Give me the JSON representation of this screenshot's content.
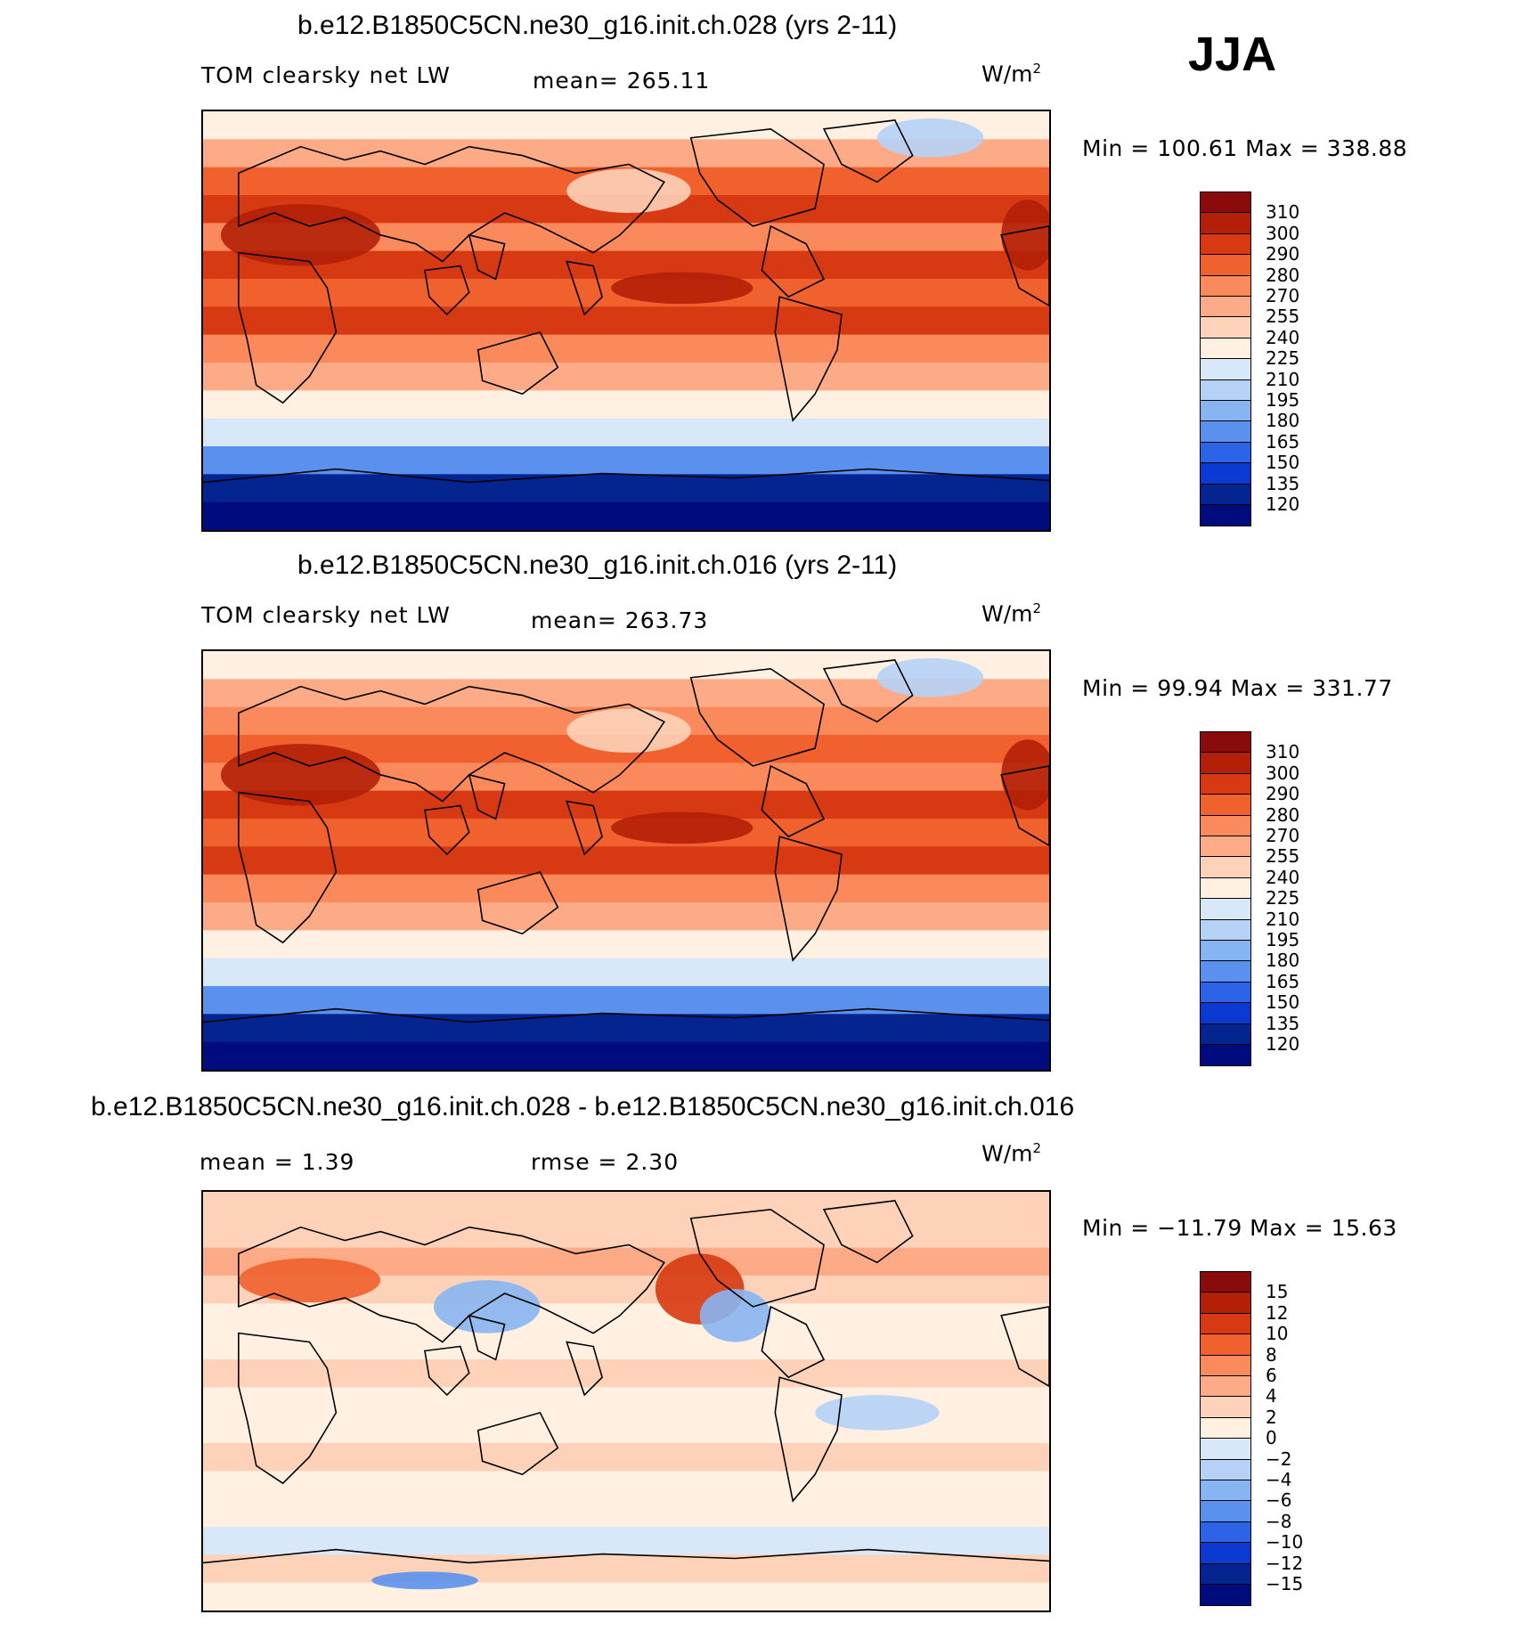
{
  "season": "JJA",
  "units_label": "W/m",
  "units_exp": "2",
  "panels": [
    {
      "title": "b.e12.B1850C5CN.ne30_g16.init.ch.028 (yrs 2-11)",
      "variable": "TOM clearsky net LW",
      "stat1": "mean= 265.11",
      "stat2": "",
      "minmax": "Min = 100.61 Max = 338.88"
    },
    {
      "title": "b.e12.B1850C5CN.ne30_g16.init.ch.016 (yrs 2-11)",
      "variable": "TOM clearsky net LW",
      "stat1": "mean= 263.73",
      "stat2": "",
      "minmax": "Min =  99.94 Max = 331.77"
    },
    {
      "title": "b.e12.B1850C5CN.ne30_g16.init.ch.028 - b.e12.B1850C5CN.ne30_g16.init.ch.016",
      "variable": "",
      "stat1": "mean =    1.39",
      "stat2": "rmse =    2.30",
      "minmax": "Min = −11.79 Max =   15.63"
    }
  ],
  "chart_data": [
    {
      "type": "heatmap",
      "title": "b.e12.B1850C5CN.ne30_g16.init.ch.028 (yrs 2-11)",
      "variable": "TOM clearsky net LW",
      "units": "W/m2",
      "mean": 265.11,
      "min": 100.61,
      "max": 338.88,
      "levels": [
        "310",
        "300",
        "290",
        "280",
        "270",
        "255",
        "240",
        "225",
        "210",
        "195",
        "180",
        "165",
        "150",
        "135",
        "120"
      ],
      "colors": [
        "#8a0b0b",
        "#b32007",
        "#d73a12",
        "#f0612e",
        "#fa8a5c",
        "#fcab86",
        "#fdd2b8",
        "#fff0e2",
        "#d8e8f8",
        "#b5d2f6",
        "#87b5f2",
        "#5a91ee",
        "#2d63e6",
        "#0a3ad2",
        "#04248f",
        "#000b7d"
      ],
      "lat_profile_value_from_north_to_south": [
        236,
        262,
        280,
        290,
        278,
        292,
        286,
        296,
        272,
        258,
        238,
        218,
        170,
        130,
        112
      ]
    },
    {
      "type": "heatmap",
      "title": "b.e12.B1850C5CN.ne30_g16.init.ch.016 (yrs 2-11)",
      "variable": "TOM clearsky net LW",
      "units": "W/m2",
      "mean": 263.73,
      "min": 99.94,
      "max": 331.77,
      "levels": [
        "310",
        "300",
        "290",
        "280",
        "270",
        "255",
        "240",
        "225",
        "210",
        "195",
        "180",
        "165",
        "150",
        "135",
        "120"
      ],
      "colors": [
        "#8a0b0b",
        "#b32007",
        "#d73a12",
        "#f0612e",
        "#fa8a5c",
        "#fcab86",
        "#fdd2b8",
        "#fff0e2",
        "#d8e8f8",
        "#b5d2f6",
        "#87b5f2",
        "#5a91ee",
        "#2d63e6",
        "#0a3ad2",
        "#04248f",
        "#000b7d"
      ],
      "lat_profile_value_from_north_to_south": [
        234,
        260,
        278,
        289,
        276,
        291,
        285,
        295,
        270,
        256,
        236,
        216,
        168,
        128,
        110
      ]
    },
    {
      "type": "heatmap",
      "title": "b.e12.B1850C5CN.ne30_g16.init.ch.028 - b.e12.B1850C5CN.ne30_g16.init.ch.016",
      "units": "W/m2",
      "mean": 1.39,
      "rmse": 2.3,
      "min": -11.79,
      "max": 15.63,
      "levels": [
        "15",
        "12",
        "10",
        "8",
        "6",
        "4",
        "2",
        "0",
        "−2",
        "−4",
        "−6",
        "−8",
        "−10",
        "−12",
        "−15"
      ],
      "colors": [
        "#8a0b0b",
        "#b32007",
        "#d73a12",
        "#f0612e",
        "#fa8a5c",
        "#fcab86",
        "#fdd2b8",
        "#fff0e2",
        "#d8e8f8",
        "#b5d2f6",
        "#87b5f2",
        "#5a91ee",
        "#2d63e6",
        "#0a3ad2",
        "#04248f",
        "#000b7d"
      ],
      "lat_profile_value_from_north_to_south": [
        2,
        3,
        4,
        2,
        1,
        1,
        2,
        1,
        1,
        2,
        1,
        0,
        -1,
        2,
        1
      ]
    }
  ]
}
